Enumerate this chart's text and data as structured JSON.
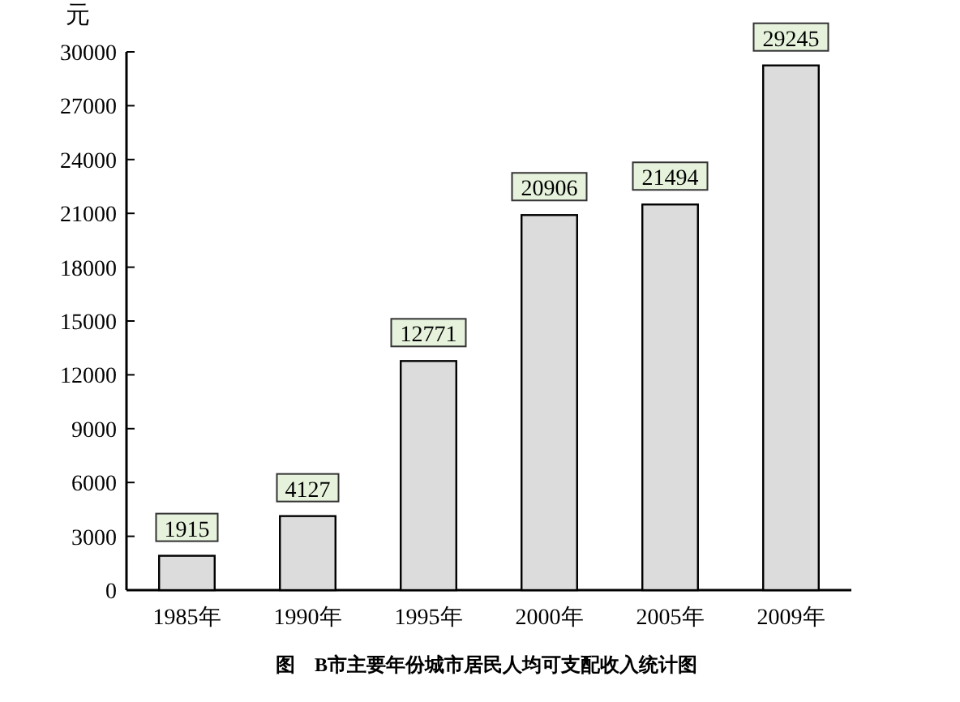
{
  "chart_data": {
    "type": "bar",
    "title": "图　B市主要年份城市居民人均可支配收入统计图",
    "ylabel": "元",
    "categories": [
      "1985年",
      "1990年",
      "1995年",
      "2000年",
      "2005年",
      "2009年"
    ],
    "values": [
      1915,
      4127,
      12771,
      20906,
      21494,
      29245
    ],
    "color": "#dcdcdc",
    "ylim": [
      0,
      30000
    ],
    "yticks": [
      0,
      3000,
      6000,
      9000,
      12000,
      15000,
      18000,
      21000,
      24000,
      27000,
      30000
    ],
    "data_labels": true
  }
}
